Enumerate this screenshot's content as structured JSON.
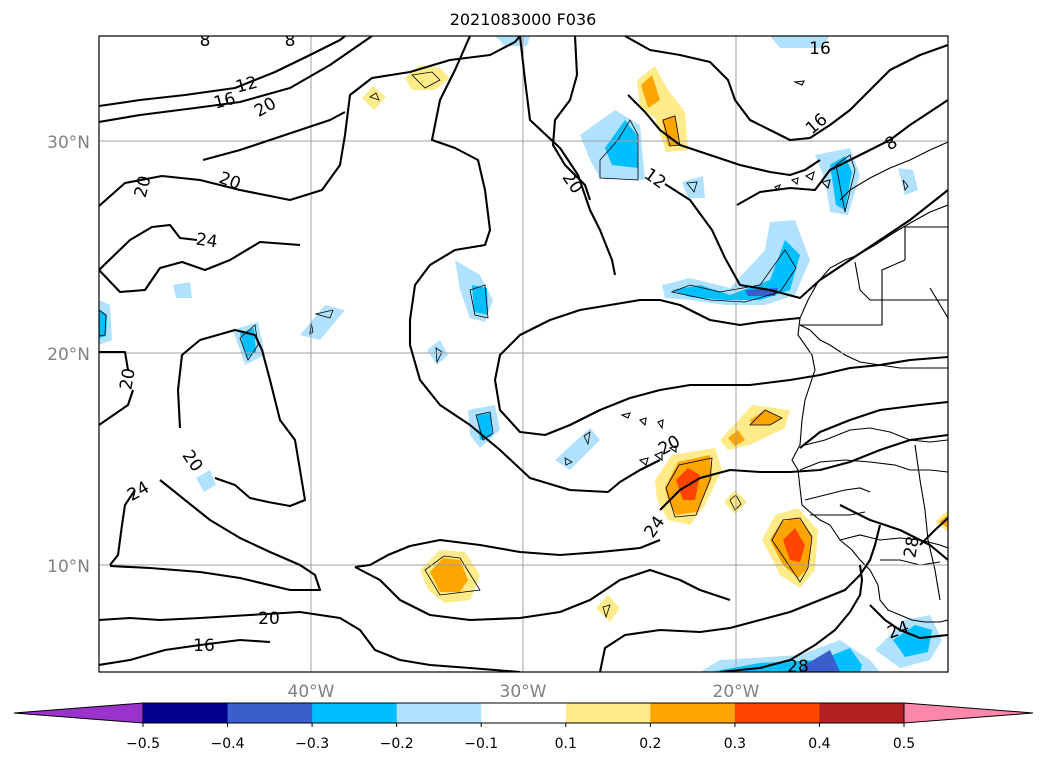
{
  "title": "2021083000 F036",
  "lat_labels": [
    "30°N",
    "20°N",
    "10°N"
  ],
  "lon_labels": [
    "40°W",
    "30°W",
    "20°W"
  ],
  "contour_labels": [
    "8",
    "8",
    "12",
    "16",
    "20",
    "16",
    "12",
    "8",
    "16",
    "20",
    "20",
    "24",
    "20",
    "20",
    "24",
    "20",
    "20",
    "24",
    "28",
    "20",
    "16",
    "24",
    "28"
  ],
  "colorbar": {
    "tick_labels": [
      "−0.5",
      "−0.4",
      "−0.3",
      "−0.2",
      "−0.1",
      "0.1",
      "0.2",
      "0.3",
      "0.4",
      "0.5"
    ],
    "colors": [
      "#9933cc",
      "#00008b",
      "#3a5fcd",
      "#00bfff",
      "#b0e2ff",
      "#ffffff",
      "#ffeb8a",
      "#ffa500",
      "#ff4500",
      "#b22222",
      "#ff88aa"
    ]
  },
  "shading_colors": {
    "light_blue": "#b0e2ff",
    "blue": "#00bfff",
    "dark_blue": "#3a5fcd",
    "yellow": "#ffeb8a",
    "orange": "#ffa500",
    "red_orange": "#ff4500"
  }
}
